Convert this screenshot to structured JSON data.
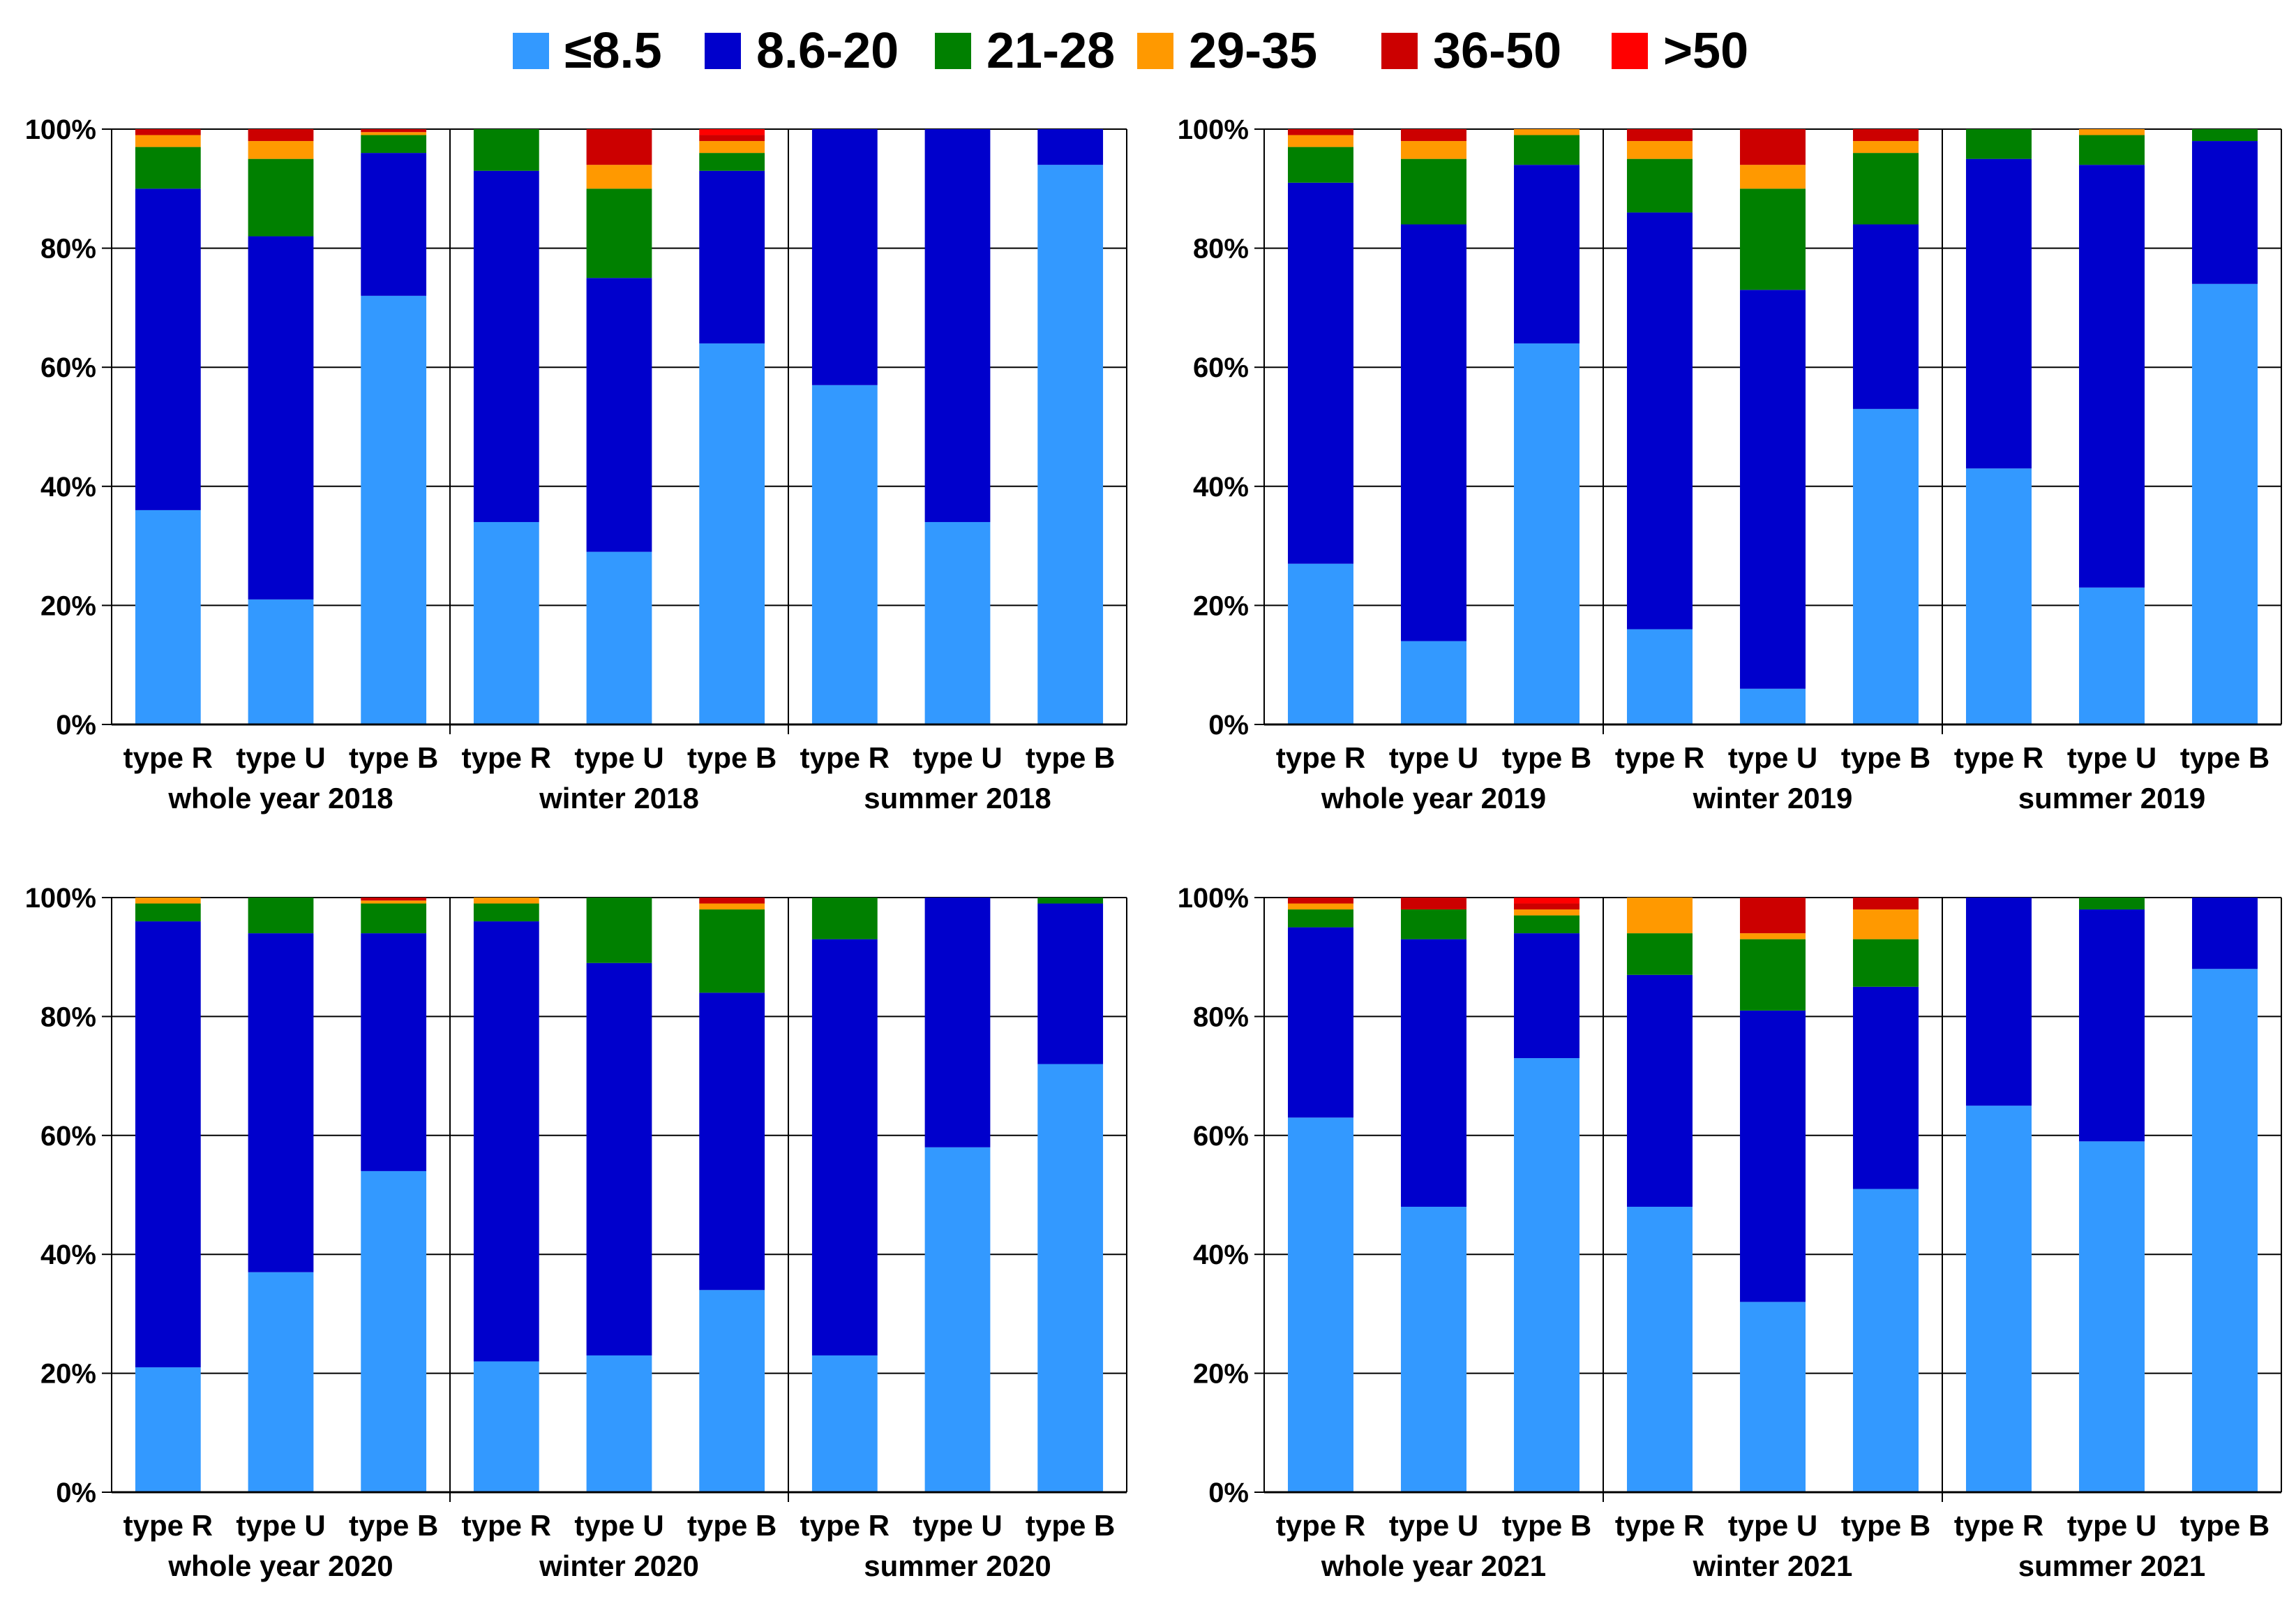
{
  "legend": [
    {
      "label": "≤8.5",
      "color": "#3399FF"
    },
    {
      "label": "8.6-20",
      "color": "#0000CC"
    },
    {
      "label": "21-28",
      "color": "#008000"
    },
    {
      "label": "29-35",
      "color": "#FF9900"
    },
    {
      "label": "36-50",
      "color": "#CC0000"
    },
    {
      "label": ">50",
      "color": "#FF0000"
    }
  ],
  "chart_data": [
    {
      "type": "bar",
      "stacked": true,
      "title": "2018",
      "y_ticks": [
        "0%",
        "20%",
        "40%",
        "60%",
        "80%",
        "100%"
      ],
      "ylim": [
        0,
        100
      ],
      "groups": [
        {
          "label": "whole year 2018",
          "categories": [
            "type R",
            "type U",
            "type B"
          ],
          "values": [
            [
              36,
              54,
              7,
              2,
              1,
              0
            ],
            [
              21,
              61,
              13,
              3,
              2,
              0
            ],
            [
              72,
              24,
              3,
              0.5,
              0.5,
              0
            ]
          ]
        },
        {
          "label": "winter 2018",
          "categories": [
            "type R",
            "type U",
            "type B"
          ],
          "values": [
            [
              34,
              59,
              7,
              0,
              0,
              0
            ],
            [
              29,
              46,
              15,
              4,
              6,
              0
            ],
            [
              64,
              29,
              3,
              2,
              1,
              1
            ]
          ]
        },
        {
          "label": "summer 2018",
          "categories": [
            "type R",
            "type U",
            "type B"
          ],
          "values": [
            [
              57,
              43,
              0,
              0,
              0,
              0
            ],
            [
              34,
              66,
              0,
              0,
              0,
              0
            ],
            [
              94,
              6,
              0,
              0,
              0,
              0
            ]
          ]
        }
      ]
    },
    {
      "type": "bar",
      "stacked": true,
      "title": "2019",
      "y_ticks": [
        "0%",
        "20%",
        "40%",
        "60%",
        "80%",
        "100%"
      ],
      "ylim": [
        0,
        100
      ],
      "groups": [
        {
          "label": "whole year 2019",
          "categories": [
            "type R",
            "type U",
            "type B"
          ],
          "values": [
            [
              27,
              64,
              6,
              2,
              1,
              0
            ],
            [
              14,
              70,
              11,
              3,
              2,
              0
            ],
            [
              64,
              30,
              5,
              1,
              0,
              0
            ]
          ]
        },
        {
          "label": "winter 2019",
          "categories": [
            "type R",
            "type U",
            "type B"
          ],
          "values": [
            [
              16,
              70,
              9,
              3,
              2,
              0
            ],
            [
              6,
              67,
              17,
              4,
              6,
              0
            ],
            [
              53,
              31,
              12,
              2,
              2,
              0
            ]
          ]
        },
        {
          "label": "summer 2019",
          "categories": [
            "type R",
            "type U",
            "type B"
          ],
          "values": [
            [
              43,
              52,
              5,
              0,
              0,
              0
            ],
            [
              23,
              71,
              5,
              1,
              0,
              0
            ],
            [
              74,
              24,
              2,
              0,
              0,
              0
            ]
          ]
        }
      ]
    },
    {
      "type": "bar",
      "stacked": true,
      "title": "2020",
      "y_ticks": [
        "0%",
        "20%",
        "40%",
        "60%",
        "80%",
        "100%"
      ],
      "ylim": [
        0,
        100
      ],
      "groups": [
        {
          "label": "whole year 2020",
          "categories": [
            "type R",
            "type U",
            "type B"
          ],
          "values": [
            [
              21,
              75,
              3,
              1,
              0,
              0
            ],
            [
              37,
              57,
              6,
              0,
              0,
              0
            ],
            [
              54,
              40,
              5,
              0.5,
              0.5,
              0
            ]
          ]
        },
        {
          "label": "winter 2020",
          "categories": [
            "type R",
            "type U",
            "type B"
          ],
          "values": [
            [
              22,
              74,
              3,
              1,
              0,
              0
            ],
            [
              23,
              66,
              11,
              0,
              0,
              0
            ],
            [
              34,
              50,
              14,
              1,
              1,
              0
            ]
          ]
        },
        {
          "label": "summer 2020",
          "categories": [
            "type R",
            "type U",
            "type B"
          ],
          "values": [
            [
              23,
              70,
              7,
              0,
              0,
              0
            ],
            [
              58,
              42,
              0,
              0,
              0,
              0
            ],
            [
              72,
              27,
              1,
              0,
              0,
              0
            ]
          ]
        }
      ]
    },
    {
      "type": "bar",
      "stacked": true,
      "title": "2021",
      "y_ticks": [
        "0%",
        "20%",
        "40%",
        "60%",
        "80%",
        "100%"
      ],
      "ylim": [
        0,
        100
      ],
      "groups": [
        {
          "label": "whole year 2021",
          "categories": [
            "type R",
            "type U",
            "type B"
          ],
          "values": [
            [
              63,
              32,
              3,
              1,
              1,
              0
            ],
            [
              48,
              45,
              5,
              0,
              2,
              0
            ],
            [
              73,
              21,
              3,
              1,
              1,
              1
            ]
          ]
        },
        {
          "label": "winter 2021",
          "categories": [
            "type R",
            "type U",
            "type B"
          ],
          "values": [
            [
              48,
              39,
              7,
              6,
              0,
              0
            ],
            [
              32,
              49,
              12,
              1,
              6,
              0
            ],
            [
              51,
              34,
              8,
              5,
              2,
              0
            ]
          ]
        },
        {
          "label": "summer 2021",
          "categories": [
            "type R",
            "type U",
            "type B"
          ],
          "values": [
            [
              65,
              35,
              0,
              0,
              0,
              0
            ],
            [
              59,
              39,
              2,
              0,
              0,
              0
            ],
            [
              88,
              12,
              0,
              0,
              0,
              0
            ]
          ]
        }
      ]
    }
  ]
}
